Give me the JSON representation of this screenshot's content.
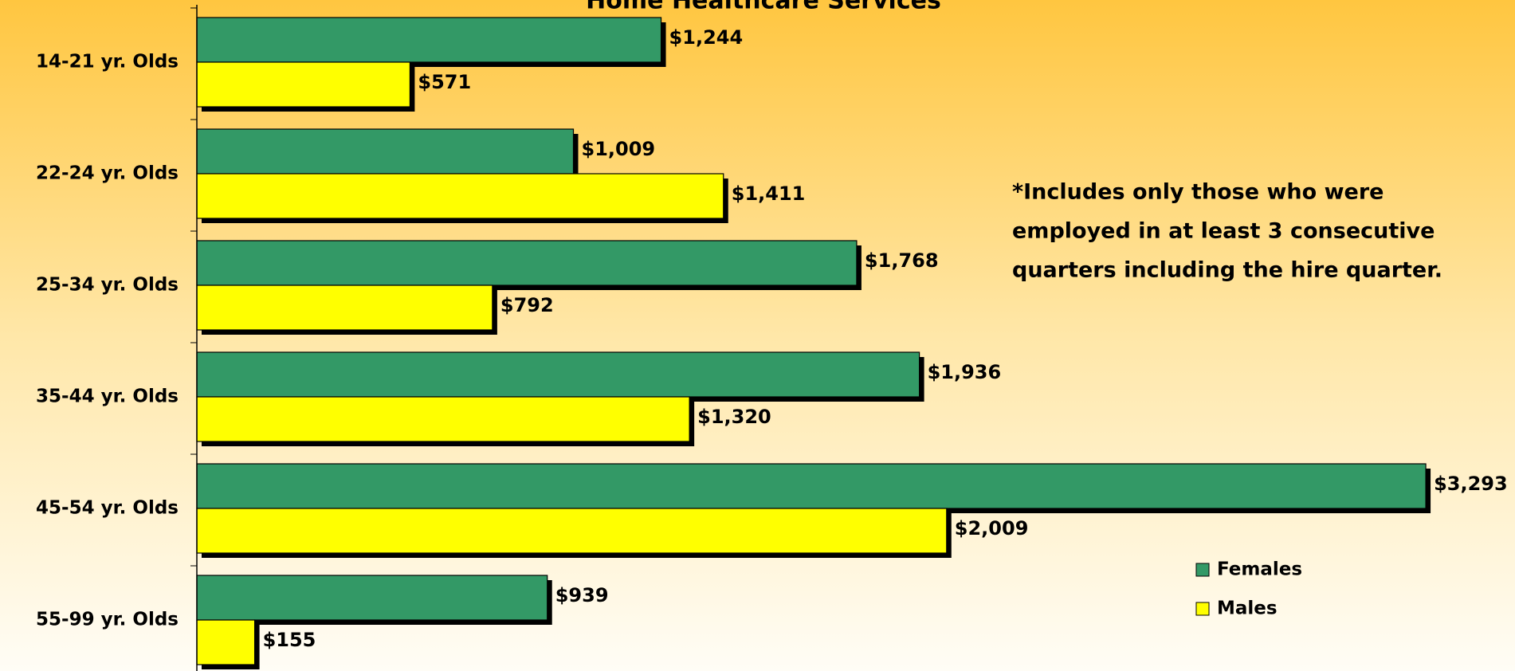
{
  "chart_data": {
    "type": "barh",
    "title": "Home Healthcare Services",
    "categories": [
      "14-21 yr. Olds",
      "22-24 yr. Olds",
      "25-34 yr. Olds",
      "35-44 yr. Olds",
      "45-54 yr. Olds",
      "55-99 yr. Olds"
    ],
    "series": [
      {
        "name": "Females",
        "color": "#339966",
        "values": [
          1244,
          1009,
          1768,
          1936,
          3293,
          939
        ],
        "value_labels": [
          "$1,244",
          "$1,009",
          "$1,768",
          "$1,936",
          "$3,293",
          "$939"
        ]
      },
      {
        "name": "Males",
        "color": "#ffff00",
        "values": [
          571,
          1411,
          792,
          1320,
          2009,
          155
        ],
        "value_labels": [
          "$571",
          "$1,411",
          "$792",
          "$1,320",
          "$2,009",
          "$155"
        ]
      }
    ],
    "xlim": [
      0,
      3500
    ],
    "note": [
      "*Includes only those who were",
      "employed in at least 3 consecutive",
      "quarters including the hire quarter."
    ],
    "legend": "lower right"
  }
}
